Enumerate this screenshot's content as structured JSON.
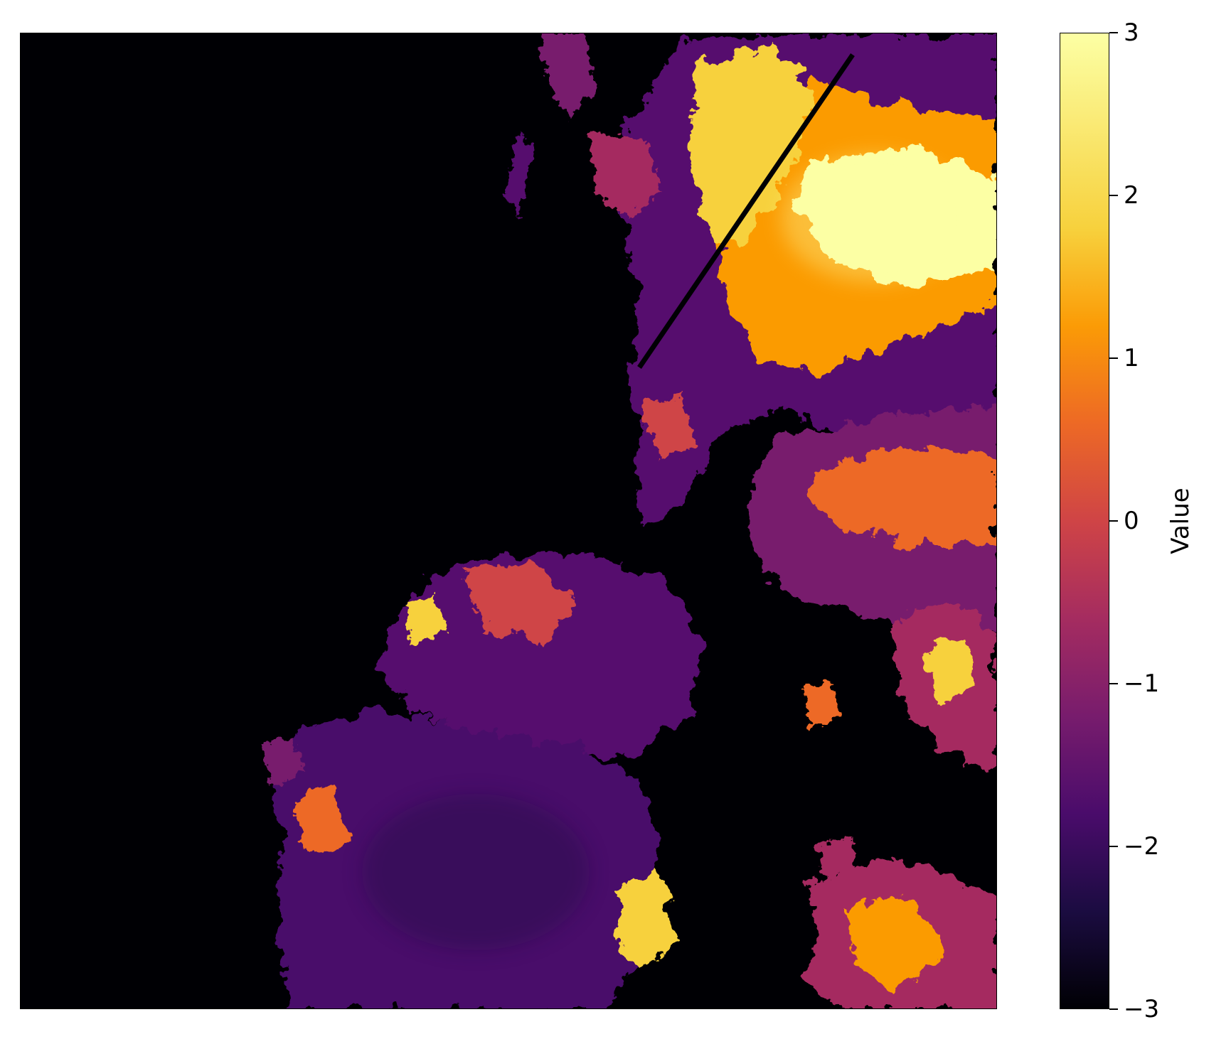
{
  "map": {
    "colormap": "inferno",
    "background_color": "#000004"
  },
  "colorbar": {
    "label": "Value",
    "min": -3,
    "max": 3,
    "ticks": [
      {
        "value": 3,
        "label": "3"
      },
      {
        "value": 2,
        "label": "2"
      },
      {
        "value": 1,
        "label": "1"
      },
      {
        "value": 0,
        "label": "0"
      },
      {
        "value": -1,
        "label": "−1"
      },
      {
        "value": -2,
        "label": "−2"
      },
      {
        "value": -3,
        "label": "−3"
      }
    ],
    "gradient_stops": [
      {
        "value": -3,
        "color": "#000004"
      },
      {
        "value": -2.4,
        "color": "#1b0c41"
      },
      {
        "value": -1.8,
        "color": "#4a0c6b"
      },
      {
        "value": -1.2,
        "color": "#781c6d"
      },
      {
        "value": -0.6,
        "color": "#a52c60"
      },
      {
        "value": 0,
        "color": "#cf4446"
      },
      {
        "value": 0.6,
        "color": "#ed6925"
      },
      {
        "value": 1.2,
        "color": "#fb9b06"
      },
      {
        "value": 1.8,
        "color": "#f7d13d"
      },
      {
        "value": 3,
        "color": "#fcffa4"
      }
    ]
  }
}
